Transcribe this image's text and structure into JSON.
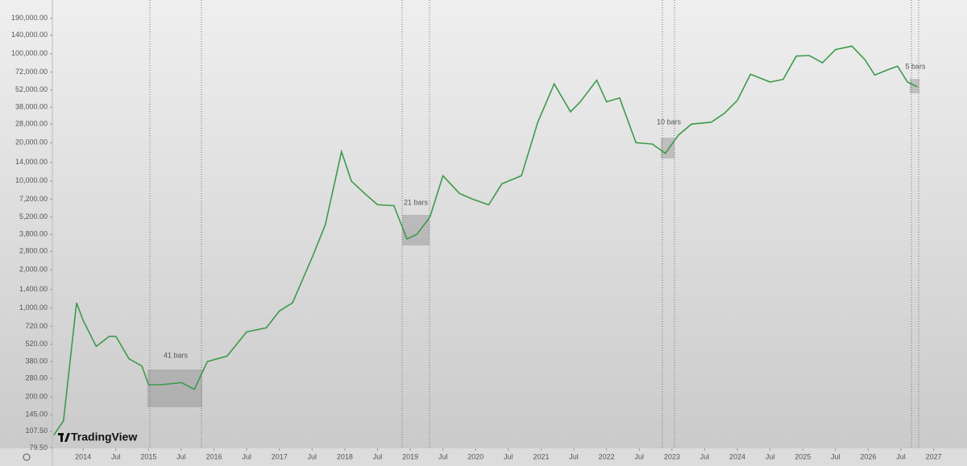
{
  "chart_data": {
    "type": "line",
    "log_scale": true,
    "color": "#3d9a4a",
    "x": [
      2013.55,
      2013.7,
      2013.9,
      2014.0,
      2014.2,
      2014.4,
      2014.5,
      2014.7,
      2014.9,
      2015.0,
      2015.2,
      2015.5,
      2015.7,
      2015.9,
      2016.2,
      2016.5,
      2016.8,
      2017.0,
      2017.2,
      2017.5,
      2017.7,
      2017.95,
      2018.1,
      2018.3,
      2018.5,
      2018.75,
      2018.95,
      2019.1,
      2019.3,
      2019.5,
      2019.75,
      2019.95,
      2020.2,
      2020.4,
      2020.7,
      2020.95,
      2021.2,
      2021.45,
      2021.6,
      2021.85,
      2022.0,
      2022.2,
      2022.45,
      2022.7,
      2022.9,
      2023.1,
      2023.3,
      2023.6,
      2023.8,
      2024.0,
      2024.2,
      2024.5,
      2024.7,
      2024.9,
      2025.1,
      2025.3,
      2025.5,
      2025.75,
      2025.95,
      2026.1,
      2026.3,
      2026.45,
      2026.6,
      2026.75
    ],
    "values": [
      100,
      130,
      1100,
      800,
      500,
      600,
      600,
      400,
      350,
      250,
      250,
      260,
      230,
      380,
      420,
      650,
      700,
      950,
      1100,
      2500,
      4500,
      17000,
      10000,
      8000,
      6500,
      6400,
      3500,
      3800,
      5200,
      11000,
      8000,
      7200,
      6500,
      9500,
      11000,
      29000,
      58000,
      35000,
      42000,
      62000,
      42000,
      45000,
      20000,
      19500,
      16500,
      23000,
      28000,
      29000,
      34000,
      43000,
      69000,
      60000,
      63000,
      96000,
      97000,
      85000,
      108000,
      115000,
      90000,
      68000,
      75000,
      80000,
      60000,
      55000
    ],
    "xlim": [
      2013.53,
      2027.51
    ],
    "ylim": [
      79,
      265000
    ],
    "xticks": [
      {
        "value": 2014,
        "label": "2014"
      },
      {
        "value": 2014.5,
        "label": "Jul"
      },
      {
        "value": 2015,
        "label": "2015"
      },
      {
        "value": 2015.5,
        "label": "Jul"
      },
      {
        "value": 2016,
        "label": "2016"
      },
      {
        "value": 2016.5,
        "label": "Jul"
      },
      {
        "value": 2017,
        "label": "2017"
      },
      {
        "value": 2017.5,
        "label": "Jul"
      },
      {
        "value": 2018,
        "label": "2018"
      },
      {
        "value": 2018.5,
        "label": "Jul"
      },
      {
        "value": 2019,
        "label": "2019"
      },
      {
        "value": 2019.5,
        "label": "Jul"
      },
      {
        "value": 2020,
        "label": "2020"
      },
      {
        "value": 2020.5,
        "label": "Jul"
      },
      {
        "value": 2021,
        "label": "2021"
      },
      {
        "value": 2021.5,
        "label": "Jul"
      },
      {
        "value": 2022,
        "label": "2022"
      },
      {
        "value": 2022.5,
        "label": "Jul"
      },
      {
        "value": 2023,
        "label": "2023"
      },
      {
        "value": 2023.5,
        "label": "Jul"
      },
      {
        "value": 2024,
        "label": "2024"
      },
      {
        "value": 2024.5,
        "label": "Jul"
      },
      {
        "value": 2025,
        "label": "2025"
      },
      {
        "value": 2025.5,
        "label": "Jul"
      },
      {
        "value": 2026,
        "label": "2026"
      },
      {
        "value": 2026.5,
        "label": "Jul"
      },
      {
        "value": 2027,
        "label": "2027"
      }
    ],
    "yticks": [
      {
        "value": 79.5,
        "label": "79.50"
      },
      {
        "value": 107.5,
        "label": "107.50"
      },
      {
        "value": 145,
        "label": "145.00"
      },
      {
        "value": 200,
        "label": "200.00"
      },
      {
        "value": 280,
        "label": "280.00"
      },
      {
        "value": 380,
        "label": "380.00"
      },
      {
        "value": 520,
        "label": "520.00"
      },
      {
        "value": 720,
        "label": "720.00"
      },
      {
        "value": 1000,
        "label": "1,000.00"
      },
      {
        "value": 1400,
        "label": "1,400.00"
      },
      {
        "value": 2000,
        "label": "2,000.00"
      },
      {
        "value": 2800,
        "label": "2,800.00"
      },
      {
        "value": 3800,
        "label": "3,800.00"
      },
      {
        "value": 5200,
        "label": "5,200.00"
      },
      {
        "value": 7200,
        "label": "7,200.00"
      },
      {
        "value": 10000,
        "label": "10,000.00"
      },
      {
        "value": 14000,
        "label": "14,000.00"
      },
      {
        "value": 20000,
        "label": "20,000.00"
      },
      {
        "value": 28000,
        "label": "28,000.00"
      },
      {
        "value": 38000,
        "label": "38,000.00"
      },
      {
        "value": 52000,
        "label": "52,000.00"
      },
      {
        "value": 72000,
        "label": "72,000.00"
      },
      {
        "value": 100000,
        "label": "100,000.00"
      },
      {
        "value": 140000,
        "label": "140,000.00"
      },
      {
        "value": 190000,
        "label": "190,000.00"
      }
    ],
    "annotations": [
      "41 bars",
      "21 bars",
      "10 bars",
      "5 bars"
    ],
    "watermark": "TradingView"
  }
}
